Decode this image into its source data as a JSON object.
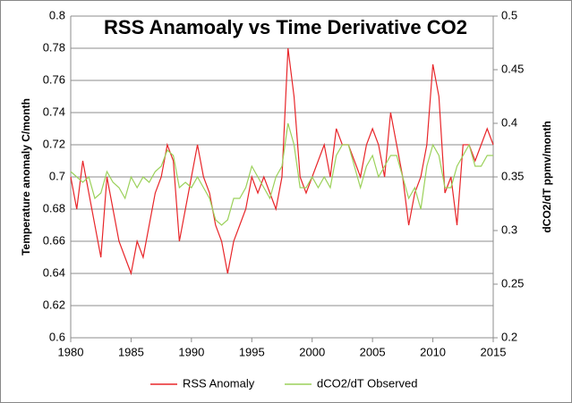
{
  "chart_data": {
    "type": "line",
    "title": "RSS Anamoaly vs Time Derivative CO2",
    "y_label": "Temperature anomaly C/month",
    "y2_label": "dCO2/dT ppmv/month",
    "x": [
      1980,
      1980.5,
      1981,
      1981.5,
      1982,
      1982.5,
      1983,
      1983.5,
      1984,
      1984.5,
      1985,
      1985.5,
      1986,
      1986.5,
      1987,
      1987.5,
      1988,
      1988.5,
      1989,
      1989.5,
      1990,
      1990.5,
      1991,
      1991.5,
      1992,
      1992.5,
      1993,
      1993.5,
      1994,
      1994.5,
      1995,
      1995.5,
      1996,
      1996.5,
      1997,
      1997.5,
      1998,
      1998.5,
      1999,
      1999.5,
      2000,
      2000.5,
      2001,
      2001.5,
      2002,
      2002.5,
      2003,
      2003.5,
      2004,
      2004.5,
      2005,
      2005.5,
      2006,
      2006.5,
      2007,
      2007.5,
      2008,
      2008.5,
      2009,
      2009.5,
      2010,
      2010.5,
      2011,
      2011.5,
      2012,
      2012.5,
      2013,
      2013.5,
      2014,
      2014.5,
      2015
    ],
    "series": [
      {
        "name": "RSS Anomaly",
        "color": "#e8262a",
        "values": [
          0.7,
          0.68,
          0.71,
          0.69,
          0.67,
          0.65,
          0.7,
          0.68,
          0.66,
          0.65,
          0.64,
          0.66,
          0.65,
          0.67,
          0.69,
          0.7,
          0.72,
          0.71,
          0.66,
          0.68,
          0.7,
          0.72,
          0.7,
          0.69,
          0.67,
          0.66,
          0.64,
          0.66,
          0.67,
          0.68,
          0.7,
          0.69,
          0.7,
          0.69,
          0.68,
          0.7,
          0.78,
          0.75,
          0.7,
          0.69,
          0.7,
          0.71,
          0.72,
          0.7,
          0.73,
          0.72,
          0.72,
          0.71,
          0.7,
          0.72,
          0.73,
          0.72,
          0.7,
          0.74,
          0.72,
          0.7,
          0.67,
          0.69,
          0.7,
          0.72,
          0.77,
          0.75,
          0.69,
          0.7,
          0.67,
          0.72,
          0.72,
          0.71,
          0.72,
          0.73,
          0.72
        ]
      },
      {
        "name": "dCO2/dT Observed",
        "color": "#9bd15a",
        "axis": "y2",
        "values": [
          0.355,
          0.35,
          0.345,
          0.35,
          0.33,
          0.335,
          0.355,
          0.345,
          0.34,
          0.33,
          0.35,
          0.34,
          0.35,
          0.345,
          0.355,
          0.36,
          0.375,
          0.37,
          0.34,
          0.345,
          0.34,
          0.35,
          0.34,
          0.33,
          0.31,
          0.305,
          0.31,
          0.33,
          0.33,
          0.34,
          0.36,
          0.35,
          0.34,
          0.33,
          0.35,
          0.36,
          0.4,
          0.38,
          0.34,
          0.34,
          0.35,
          0.34,
          0.35,
          0.34,
          0.37,
          0.38,
          0.38,
          0.36,
          0.34,
          0.36,
          0.37,
          0.35,
          0.36,
          0.37,
          0.37,
          0.35,
          0.33,
          0.34,
          0.32,
          0.36,
          0.38,
          0.37,
          0.34,
          0.34,
          0.36,
          0.37,
          0.38,
          0.36,
          0.36,
          0.37,
          0.37
        ]
      }
    ],
    "xlim": [
      1980,
      2015
    ],
    "xticks": [
      1980,
      1985,
      1990,
      1995,
      2000,
      2005,
      2010,
      2015
    ],
    "ylim": [
      0.6,
      0.8
    ],
    "yticks": [
      0.6,
      0.62,
      0.64,
      0.66,
      0.68,
      0.7,
      0.72,
      0.74,
      0.76,
      0.78,
      0.8
    ],
    "y2lim": [
      0.2,
      0.5
    ],
    "y2ticks": [
      0.2,
      0.25,
      0.3,
      0.35,
      0.4,
      0.45,
      0.5
    ],
    "grid": true,
    "legend": "bottom"
  }
}
